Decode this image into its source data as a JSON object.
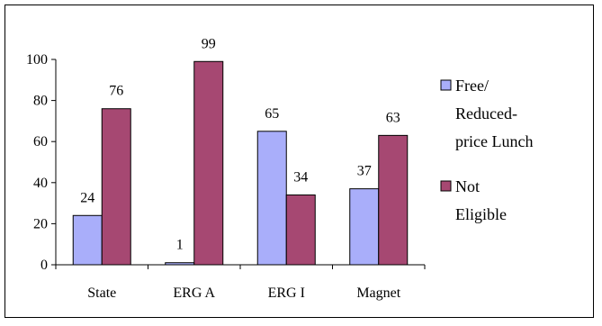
{
  "chart_data": {
    "type": "bar",
    "categories": [
      "State",
      "ERG A",
      "ERG I",
      "Magnet"
    ],
    "series": [
      {
        "name": "Free/ Reduced-price Lunch",
        "legend_lines": [
          "Free/",
          "Reduced-",
          "price Lunch"
        ],
        "color": "#A9AEFA",
        "values": [
          24,
          1,
          65,
          37
        ]
      },
      {
        "name": "Not Eligible",
        "legend_lines": [
          "Not",
          "Eligible"
        ],
        "color": "#A64872",
        "values": [
          76,
          99,
          34,
          63
        ]
      }
    ],
    "yticks": [
      0,
      20,
      40,
      60,
      80,
      100
    ],
    "ylim": [
      0,
      100
    ],
    "grid": false,
    "legend_position": "right",
    "data_labels": true
  }
}
